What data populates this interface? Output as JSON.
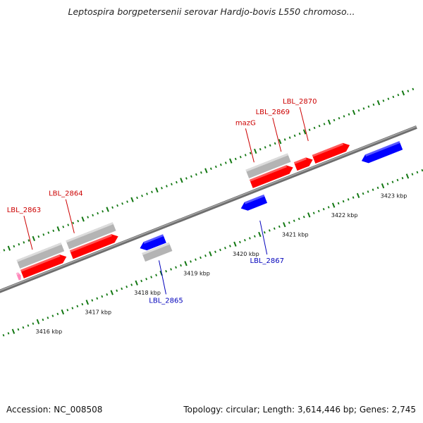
{
  "title": "Leptospira borgpetersenii serovar Hardjo-bovis L550 chromoso...",
  "footer": {
    "accession": "Accession: NC_008508",
    "summary": "Topology: circular; Length: 3,614,446 bp; Genes: 2,745"
  },
  "colors": {
    "forward_gene": "#ff0000",
    "reverse_gene": "#0000ff",
    "cds_feature": "#b4b4b4",
    "pseudo_gene": "#ff88bb",
    "backbone": "#888888",
    "tick": "#117711",
    "forward_label": "#cc0000",
    "reverse_label": "#0000bb"
  },
  "ruler": {
    "unit": "kbp",
    "labels": [
      {
        "kbp": 3416,
        "text": "3416 kbp"
      },
      {
        "kbp": 3417,
        "text": "3417 kbp"
      },
      {
        "kbp": 3418,
        "text": "3418 kbp"
      },
      {
        "kbp": 3419,
        "text": "3419 kbp"
      },
      {
        "kbp": 3420,
        "text": "3420 kbp"
      },
      {
        "kbp": 3421,
        "text": "3421 kbp"
      },
      {
        "kbp": 3422,
        "text": "3422 kbp"
      },
      {
        "kbp": 3423,
        "text": "3423 kbp"
      }
    ]
  },
  "features": [
    {
      "kind": "pseudo",
      "strand": "+",
      "start_kbp": 3415.95,
      "end_kbp": 3416.02
    },
    {
      "kind": "cds",
      "strand": "+",
      "start_kbp": 3416.05,
      "end_kbp": 3416.95
    },
    {
      "kind": "gene",
      "strand": "+",
      "start_kbp": 3416.05,
      "end_kbp": 3416.95
    },
    {
      "kind": "cds",
      "strand": "+",
      "start_kbp": 3417.05,
      "end_kbp": 3418.0
    },
    {
      "kind": "gene",
      "strand": "+",
      "start_kbp": 3417.05,
      "end_kbp": 3418.0
    },
    {
      "kind": "gene",
      "strand": "-",
      "start_kbp": 3418.3,
      "end_kbp": 3418.8
    },
    {
      "kind": "cds",
      "strand": "-",
      "start_kbp": 3418.3,
      "end_kbp": 3418.85
    },
    {
      "kind": "gene",
      "strand": "-",
      "start_kbp": 3420.35,
      "end_kbp": 3420.85
    },
    {
      "kind": "cds",
      "strand": "+",
      "start_kbp": 3420.7,
      "end_kbp": 3421.55
    },
    {
      "kind": "gene",
      "strand": "+",
      "start_kbp": 3420.7,
      "end_kbp": 3421.55
    },
    {
      "kind": "gene",
      "strand": "+",
      "start_kbp": 3421.6,
      "end_kbp": 3421.95
    },
    {
      "kind": "gene",
      "strand": "+",
      "start_kbp": 3421.97,
      "end_kbp": 3422.7
    },
    {
      "kind": "gene",
      "strand": "-",
      "start_kbp": 3422.8,
      "end_kbp": 3423.6
    }
  ],
  "gene_labels": [
    {
      "name": "LBL_2863",
      "strand": "+",
      "kbp": 3416.4
    },
    {
      "name": "LBL_2864",
      "strand": "+",
      "kbp": 3417.25
    },
    {
      "name": "LBL_2865",
      "strand": "-",
      "kbp": 3418.55
    },
    {
      "name": "mazG",
      "strand": "+",
      "kbp": 3420.9
    },
    {
      "name": "LBL_2867",
      "strand": "-",
      "kbp": 3420.6
    },
    {
      "name": "LBL_2869",
      "strand": "+",
      "kbp": 3421.45
    },
    {
      "name": "LBL_2870",
      "strand": "+",
      "kbp": 3422.0
    }
  ]
}
